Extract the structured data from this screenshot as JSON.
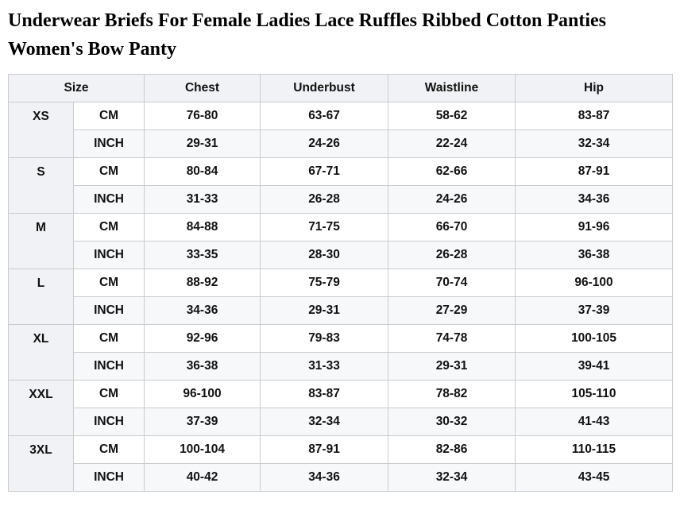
{
  "page": {
    "title": "Underwear Briefs For Female Ladies Lace Ruffles Ribbed Cotton Panties Women's Bow Panty"
  },
  "table": {
    "headers": {
      "size": "Size",
      "chest": "Chest",
      "underbust": "Underbust",
      "waistline": "Waistline",
      "hip": "Hip"
    },
    "unit_labels": {
      "cm": "CM",
      "inch": "INCH"
    },
    "rows": [
      {
        "size": "XS",
        "cm": [
          "76-80",
          "63-67",
          "58-62",
          "83-87"
        ],
        "inch": [
          "29-31",
          "24-26",
          "22-24",
          "32-34"
        ]
      },
      {
        "size": "S",
        "cm": [
          "80-84",
          "67-71",
          "62-66",
          "87-91"
        ],
        "inch": [
          "31-33",
          "26-28",
          "24-26",
          "34-36"
        ]
      },
      {
        "size": "M",
        "cm": [
          "84-88",
          "71-75",
          "66-70",
          "91-96"
        ],
        "inch": [
          "33-35",
          "28-30",
          "26-28",
          "36-38"
        ]
      },
      {
        "size": "L",
        "cm": [
          "88-92",
          "75-79",
          "70-74",
          "96-100"
        ],
        "inch": [
          "34-36",
          "29-31",
          "27-29",
          "37-39"
        ]
      },
      {
        "size": "XL",
        "cm": [
          "92-96",
          "79-83",
          "74-78",
          "100-105"
        ],
        "inch": [
          "36-38",
          "31-33",
          "29-31",
          "39-41"
        ]
      },
      {
        "size": "XXL",
        "cm": [
          "96-100",
          "83-87",
          "78-82",
          "105-110"
        ],
        "inch": [
          "37-39",
          "32-34",
          "30-32",
          "41-43"
        ]
      },
      {
        "size": "3XL",
        "cm": [
          "100-104",
          "87-91",
          "82-86",
          "110-115"
        ],
        "inch": [
          "40-42",
          "34-36",
          "32-34",
          "43-45"
        ]
      }
    ]
  },
  "colors": {
    "header_bg": "#f1f2f5",
    "stripe_bg": "#f7f8fa",
    "border": "#c9cbce",
    "text": "#111111"
  }
}
